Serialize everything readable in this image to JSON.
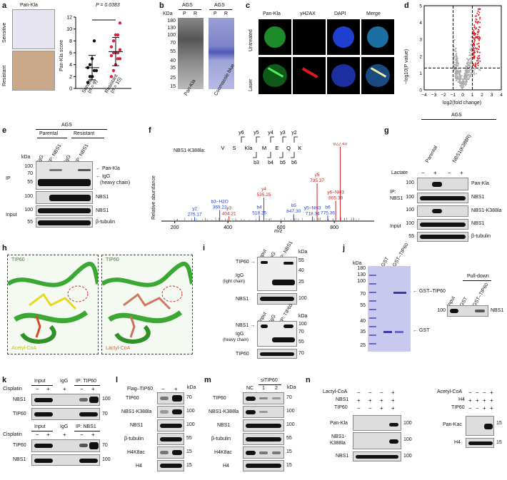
{
  "panels": {
    "a": {
      "label": "a",
      "title": "Pan-Kla",
      "row_sensitive": "Sensitive",
      "row_resistant": "Resistant",
      "pvalue": "P = 0.0383",
      "ylabel": "Pan-Kla score",
      "x_sensitive": "Sensitive",
      "x_sensitive_n": "(n = 9)",
      "x_resistant": "Resistant",
      "x_resistant_n": "(n = 15)",
      "yticks": [
        "0",
        "2",
        "4",
        "6",
        "8",
        "10",
        "12"
      ]
    },
    "b": {
      "label": "b",
      "group1": "AGS",
      "group2": "AGS",
      "kda": "KDa",
      "lanes": [
        "P",
        "R",
        "P",
        "R"
      ],
      "markers": [
        "180",
        "130",
        "100",
        "70",
        "55",
        "40",
        "35",
        "25",
        "15"
      ],
      "x1": "Pan-Kla",
      "x2": "Coomassie blue"
    },
    "c": {
      "label": "c",
      "cols": [
        "Pan-Kla",
        "γH2AX",
        "DAPI",
        "Merge"
      ],
      "rows": [
        "Untreated",
        "Laser"
      ]
    },
    "d": {
      "label": "d",
      "ylabel": "−log10(P value)",
      "xlabel": "log2(fold change)",
      "xticks": [
        "−4",
        "−3",
        "−2",
        "−1",
        "0",
        "1",
        "2",
        "3",
        "4"
      ],
      "yticks": [
        "0",
        "1",
        "2",
        "3",
        "4",
        "5"
      ]
    },
    "e": {
      "label": "e",
      "group": "AGS",
      "parental": "Parental",
      "resistant": "Resistant",
      "kda": "kDa",
      "lanes": [
        "IgG",
        "IP: NBS1",
        "IgG",
        "IP: NBS1"
      ],
      "ip": "IP",
      "input": "Input",
      "ann1": "Pan-Kla",
      "ann2": "IgG",
      "ann3": "(heavy chain)",
      "ann4": "NBS1",
      "ann5": "NBS1",
      "ann6": "β-tubulin",
      "markers": [
        "100",
        "70",
        "55",
        "100",
        "100",
        "55"
      ]
    },
    "f": {
      "label": "f",
      "peptide": "NBS1-K388la:",
      "seq": [
        "V",
        "S",
        "Kla",
        "M",
        "E",
        "Q",
        "K"
      ],
      "yions": [
        "y6",
        "y5",
        "y4",
        "y3",
        "y2"
      ],
      "bions": [
        "b3",
        "b4",
        "b5",
        "b6"
      ],
      "ylabel": "Relative abundance",
      "xlabel": "m/z",
      "xticks": [
        "200",
        "400",
        "600",
        "800"
      ],
      "peaks": [
        "y2\n275.17",
        "b3−H2O\n369.22",
        "y3\n404.21",
        "b4\n518.25",
        "y4\n535.25",
        "b5\n647.30",
        "y5−NH3\n718.34",
        "y5\n735.37",
        "b6\n775.36",
        "y6−NH3\n805.38",
        "y6\n822.40"
      ]
    },
    "g": {
      "label": "g",
      "group": "AGS",
      "parental": "Parental",
      "mutant": "NBS1(K388R)",
      "lactate": "Lactate",
      "signs": [
        "−",
        "+",
        "−",
        "+"
      ],
      "ip": "IP:",
      "ip2": "NBS1",
      "input": "Input",
      "rows": [
        "Pan-Kla",
        "NBS1",
        "NBS1-K388la",
        "NBS1",
        "β-tubulin"
      ],
      "markers": [
        "100",
        "100",
        "100",
        "100",
        "55"
      ]
    },
    "h": {
      "label": "h",
      "left_title": "TIP60",
      "right_title": "TIP60",
      "left_ligand": "Acetyl-CoA",
      "right_ligand": "Lactyl-CoA"
    },
    "i": {
      "label": "i",
      "lanes1": [
        "Input",
        "IgG",
        "IP: NBS1"
      ],
      "lanes2": [
        "Input",
        "IgG",
        "IP: TIP60"
      ],
      "kda": "kDa",
      "tip60": "TIP60",
      "igg_l": "IgG",
      "igg_l2": "(light chain)",
      "nbs1": "NBS1",
      "nbs1b": "NBS1",
      "igg_h": "IgG",
      "igg_h2": "(heavy chain)",
      "tip60b": "TIP60",
      "m1": [
        "55",
        "40",
        "25",
        "100"
      ],
      "m2": [
        "100",
        "70",
        "55",
        "70"
      ]
    },
    "j": {
      "label": "j",
      "lanes": [
        "GST",
        "GST–TIP60"
      ],
      "kda": "kDa",
      "markers": [
        "180",
        "130",
        "100",
        "70",
        "55",
        "40",
        "35",
        "25"
      ],
      "gsttip60": "GST–TIP60",
      "gst": "GST",
      "pulldown": "Pull-down",
      "pd_lanes": [
        "Input",
        "GST",
        "GST–TIP60"
      ],
      "pd_marker": "100",
      "pd_label": "NBS1"
    },
    "k": {
      "label": "k",
      "top_groups": [
        "Input",
        "IgG",
        "IP: TIP60"
      ],
      "bot_groups": [
        "Input",
        "IgG",
        "IP: NBS1"
      ],
      "cis": "Cisplatin",
      "signs": [
        "−",
        "+",
        "+",
        "−",
        "+"
      ],
      "rows_top": [
        "NBS1",
        "TIP60"
      ],
      "rows_bot": [
        "TIP60",
        "NBS1"
      ],
      "m_top": [
        "100",
        "70"
      ],
      "m_bot": [
        "70",
        "100"
      ]
    },
    "l": {
      "label": "l",
      "flag": "Flag–TIP60",
      "signs": [
        "−",
        "+"
      ],
      "kda": "kDa",
      "rows": [
        "TIP60",
        "NBS1-K388la",
        "NBS1",
        "β-tubulin",
        "H4K8ac",
        "H4"
      ],
      "markers": [
        "70",
        "100",
        "100",
        "55",
        "15",
        "15"
      ]
    },
    "m": {
      "label": "m",
      "si": "siTIP60",
      "lanes": [
        "NC",
        "1",
        "2"
      ],
      "kda": "kDa",
      "rows": [
        "TIP60",
        "NBS1-K388la",
        "NBS1",
        "β-tubulin",
        "H4K8ac",
        "H4"
      ],
      "markers": [
        "70",
        "100",
        "100",
        "55",
        "15",
        "15"
      ]
    },
    "n": {
      "label": "n",
      "lcoa": "Lactyl-CoA",
      "nbs1": "NBS1",
      "tip60": "TIP60",
      "acoa": "Acetyl-CoA",
      "h4": "H4",
      "tip60b": "TIP60",
      "s_lcoa": [
        "−",
        "−",
        "−",
        "+"
      ],
      "s_nbs1": [
        "+",
        "+",
        "+",
        "+"
      ],
      "s_tip60": [
        "−",
        "−",
        "+",
        "+"
      ],
      "s_acoa": [
        "−",
        "−",
        "−",
        "+"
      ],
      "s_h4": [
        "+",
        "+",
        "+",
        "+"
      ],
      "s_tip60b": [
        "−",
        "−",
        "+",
        "+"
      ],
      "rows_l": [
        "Pan-Kla",
        "NBS1-",
        "K388la",
        "NBS1"
      ],
      "m_l": [
        "100",
        "100",
        "100"
      ],
      "rows_r": [
        "Pan-Kac",
        "H4"
      ],
      "m_r": [
        "15",
        "15"
      ],
      "kda": "kDa"
    }
  },
  "chart_data": [
    {
      "type": "scatter",
      "title": "",
      "ylabel": "Pan-Kla score",
      "categories": [
        "Sensitive (n = 9)",
        "Resistant (n = 15)"
      ],
      "series": [
        {
          "name": "Sensitive",
          "values": [
            1,
            2,
            2,
            3,
            3,
            3.5,
            4,
            5,
            8
          ]
        },
        {
          "name": "Resistant",
          "values": [
            2,
            3,
            4,
            5,
            5,
            5.5,
            6,
            6,
            6,
            6.5,
            7,
            8,
            9,
            9,
            11
          ]
        }
      ],
      "ylim": [
        0,
        12
      ],
      "annotation": "P = 0.0383"
    },
    {
      "type": "scatter",
      "xlabel": "log2(fold change)",
      "ylabel": "−log10(P value)",
      "xlim": [
        -4,
        4
      ],
      "ylim": [
        0,
        5
      ],
      "thresholds": {
        "x": [
          -1,
          1
        ],
        "y": 1.3
      }
    },
    {
      "type": "bar",
      "xlabel": "m/z",
      "ylabel": "Relative abundance",
      "xlim": [
        150,
        950
      ],
      "peaks": [
        {
          "mz": 275.17,
          "label": "y2",
          "rel": 5,
          "color": "#2244cc"
        },
        {
          "mz": 369.22,
          "label": "b3−H2O",
          "rel": 14,
          "color": "#2244cc"
        },
        {
          "mz": 404.21,
          "label": "y3",
          "rel": 6,
          "color": "#cc2222"
        },
        {
          "mz": 518.25,
          "label": "b4",
          "rel": 7,
          "color": "#2244cc"
        },
        {
          "mz": 535.25,
          "label": "y4",
          "rel": 30,
          "color": "#cc2222"
        },
        {
          "mz": 647.3,
          "label": "b5",
          "rel": 9,
          "color": "#2244cc"
        },
        {
          "mz": 718.34,
          "label": "y5−NH3",
          "rel": 6,
          "color": "#2244cc"
        },
        {
          "mz": 735.37,
          "label": "y5",
          "rel": 48,
          "color": "#cc2222"
        },
        {
          "mz": 775.36,
          "label": "b6",
          "rel": 7,
          "color": "#2244cc"
        },
        {
          "mz": 805.38,
          "label": "y6−NH3",
          "rel": 26,
          "color": "#cc2222"
        },
        {
          "mz": 822.4,
          "label": "y6",
          "rel": 95,
          "color": "#cc2222"
        }
      ]
    }
  ]
}
